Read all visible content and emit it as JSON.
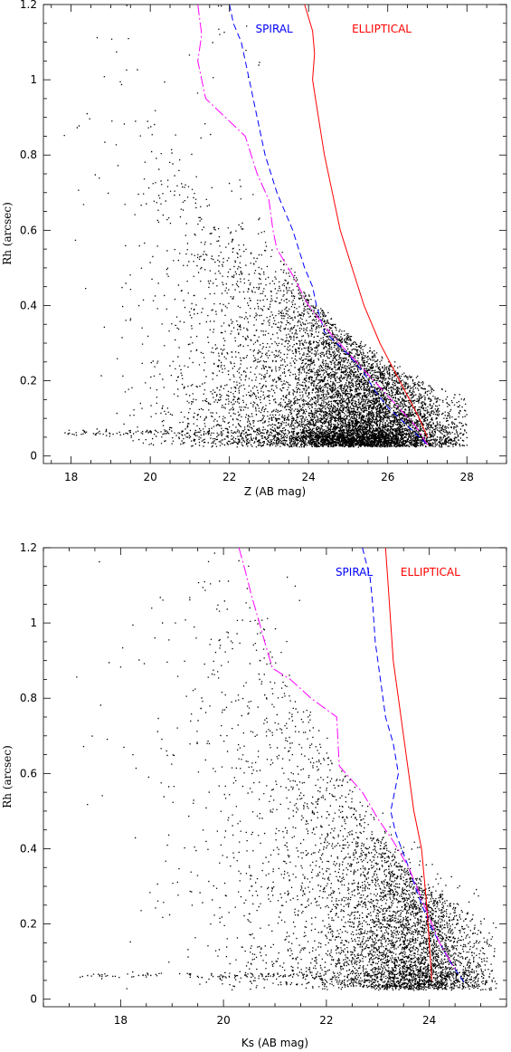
{
  "chart_data": [
    {
      "type": "scatter",
      "xlabel": "Z (AB mag)",
      "ylabel": "Rh (arcsec)",
      "xlim": [
        17.3,
        29.0
      ],
      "ylim": [
        -0.02,
        1.2
      ],
      "xticks": [
        18,
        20,
        22,
        24,
        26,
        28
      ],
      "yticks": [
        0,
        0.2,
        0.4,
        0.6,
        0.8,
        1,
        1.2
      ],
      "xminor": 0.5,
      "yminor": 0.05,
      "series": [
        {
          "name": "SPIRAL",
          "color": "#0000ff",
          "dash": "7,4",
          "x": [
            22.0,
            22.1,
            22.3,
            22.4,
            22.5,
            22.7,
            22.9,
            23.2,
            23.6,
            23.9,
            24.1,
            24.2,
            24.4,
            25.0,
            25.4,
            25.7,
            26.0,
            26.3,
            26.7,
            27.0
          ],
          "y": [
            1.2,
            1.15,
            1.1,
            1.05,
            1.0,
            0.9,
            0.8,
            0.7,
            0.6,
            0.5,
            0.45,
            0.4,
            0.33,
            0.27,
            0.22,
            0.17,
            0.13,
            0.1,
            0.06,
            0.03
          ]
        },
        {
          "name": "ELLIPTICAL",
          "color": "#ff0000",
          "dash": "",
          "x": [
            23.9,
            24.1,
            24.15,
            24.1,
            24.25,
            24.4,
            24.6,
            24.8,
            25.1,
            25.4,
            25.8,
            26.3,
            26.8,
            27.0
          ],
          "y": [
            1.2,
            1.13,
            1.07,
            1.0,
            0.9,
            0.8,
            0.7,
            0.6,
            0.5,
            0.4,
            0.3,
            0.2,
            0.1,
            0.05
          ]
        },
        {
          "name": "",
          "color": "#ff00ff",
          "dash": "12,3,2,3",
          "x": [
            21.2,
            21.3,
            21.2,
            21.4,
            21.9,
            22.4,
            22.7,
            23.0,
            23.1,
            23.2,
            23.6,
            24.0,
            24.6,
            25.3,
            26.0,
            26.7,
            27.0
          ],
          "y": [
            1.2,
            1.12,
            1.05,
            0.95,
            0.9,
            0.85,
            0.75,
            0.68,
            0.6,
            0.55,
            0.48,
            0.4,
            0.32,
            0.24,
            0.16,
            0.08,
            0.03
          ]
        }
      ],
      "legend": [
        {
          "label": "SPIRAL",
          "color": "#0000ff",
          "x": 23.6,
          "y": 1.185
        },
        {
          "label": "ELLIPTICAL",
          "color": "#ff0000",
          "x": 26.6,
          "y": 1.185
        }
      ],
      "scatter": {
        "stellar": {
          "n": 190,
          "xmin": 17.8,
          "xmax": 25.0,
          "y0": 0.063,
          "ysd": 0.005
        },
        "blobs": [
          {
            "n": 7300,
            "xmean": 25.2,
            "xsd": 1.15,
            "xmin": 20.5,
            "xmax": 28.0,
            "ymult": 0.09,
            "yfactor": 0.35,
            "yexp": 2.0
          },
          {
            "n": 1400,
            "xmean": 22.2,
            "xsd": 1.2,
            "xmin": 17.9,
            "xmax": 27.0,
            "ymult": 0.18,
            "yfactor": 0.22,
            "yexp": 1.7
          }
        ],
        "sparse": {
          "n": 70,
          "xmin": 17.8,
          "xmax": 22.8,
          "ymin": 0.55,
          "ymax": 1.2
        }
      }
    },
    {
      "type": "scatter",
      "xlabel": "Ks (AB mag)",
      "ylabel": "Rh (arcsec)",
      "xlim": [
        16.5,
        25.5
      ],
      "ylim": [
        -0.02,
        1.2
      ],
      "xticks": [
        18,
        20,
        22,
        24
      ],
      "yticks": [
        0,
        0.2,
        0.4,
        0.6,
        0.8,
        1,
        1.2
      ],
      "xminor": 0.5,
      "yminor": 0.05,
      "series": [
        {
          "name": "SPIRAL",
          "color": "#0000ff",
          "dash": "7,4",
          "x": [
            22.7,
            22.85,
            22.9,
            22.95,
            23.05,
            23.15,
            23.3,
            23.4,
            23.25,
            23.35,
            23.6,
            23.8,
            24.0,
            24.2,
            24.4,
            24.7
          ],
          "y": [
            1.2,
            1.12,
            1.05,
            0.95,
            0.85,
            0.75,
            0.68,
            0.6,
            0.5,
            0.44,
            0.35,
            0.27,
            0.2,
            0.15,
            0.1,
            0.04
          ]
        },
        {
          "name": "ELLIPTICAL",
          "color": "#ff0000",
          "dash": "",
          "x": [
            23.15,
            23.2,
            23.25,
            23.3,
            23.4,
            23.5,
            23.6,
            23.7,
            23.85,
            23.95,
            24.05
          ],
          "y": [
            1.2,
            1.1,
            1.0,
            0.9,
            0.8,
            0.7,
            0.6,
            0.5,
            0.4,
            0.25,
            0.05
          ]
        },
        {
          "name": "",
          "color": "#ff00ff",
          "dash": "12,3,2,3",
          "x": [
            20.3,
            20.4,
            20.55,
            20.7,
            20.8,
            20.95,
            21.3,
            21.7,
            22.2,
            22.25,
            22.7,
            23.0,
            23.3,
            23.6,
            23.9,
            24.2,
            24.5
          ],
          "y": [
            1.2,
            1.15,
            1.07,
            1.0,
            0.95,
            0.88,
            0.85,
            0.8,
            0.75,
            0.62,
            0.55,
            0.48,
            0.42,
            0.35,
            0.25,
            0.15,
            0.08
          ]
        }
      ],
      "legend": [
        {
          "label": "SPIRAL",
          "color": "#0000ff",
          "x": 22.9,
          "y": 1.185
        },
        {
          "label": "ELLIPTICAL",
          "color": "#ff0000",
          "x": 24.6,
          "y": 1.185
        }
      ],
      "scatter": {
        "stellar": {
          "n": 180,
          "xmin": 17.2,
          "xmax": 24.8,
          "y0": 0.065,
          "ysd": 0.004
        },
        "blobs": [
          {
            "n": 3200,
            "xmean": 23.6,
            "xsd": 0.75,
            "xmin": 20.0,
            "xmax": 25.3,
            "ymult": 0.13,
            "yfactor": 0.45,
            "yexp": 1.6
          },
          {
            "n": 1700,
            "xmean": 21.8,
            "xsd": 1.25,
            "xmin": 17.7,
            "xmax": 25.0,
            "ymult": 0.23,
            "yfactor": 0.33,
            "yexp": 1.3
          }
        ],
        "sparse": {
          "n": 55,
          "xmin": 17.0,
          "xmax": 21.5,
          "ymin": 0.5,
          "ymax": 1.2
        }
      }
    }
  ]
}
